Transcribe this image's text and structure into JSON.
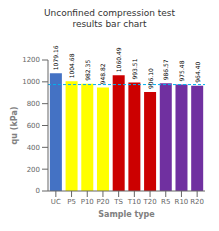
{
  "chart_data": {
    "type": "bar",
    "title": "Unconfined compression test\nresults bar chart",
    "categories": [
      "UC",
      "P5",
      "P10",
      "P20",
      "TS",
      "T10",
      "T20",
      "R5",
      "R10",
      "R20"
    ],
    "values": [
      1079.16,
      1004.68,
      982.35,
      948.82,
      1060.49,
      993.51,
      906.1,
      986.57,
      975.48,
      964.4
    ],
    "value_labels": [
      "1079.16",
      "1004.68",
      "982.35",
      "948.82",
      "1060.49",
      "993.51",
      "906.10",
      "986.57",
      "975.48",
      "964.40"
    ],
    "colors": [
      "#4472C4",
      "#FFFF00",
      "#FFFF00",
      "#FFFF00",
      "#CC0000",
      "#CC0000",
      "#CC0000",
      "#7030A0",
      "#7030A0",
      "#7030A0"
    ],
    "xlabel": "Sample type",
    "ylabel": "qu (kPa)",
    "ylim": [
      0,
      1200
    ],
    "yticks": [
      0,
      200,
      400,
      600,
      800,
      1000,
      1200
    ],
    "reference_line": {
      "y": 975,
      "color": "#00B0F0",
      "line_style": "dashed"
    },
    "data_labels": true,
    "grid": false
  }
}
